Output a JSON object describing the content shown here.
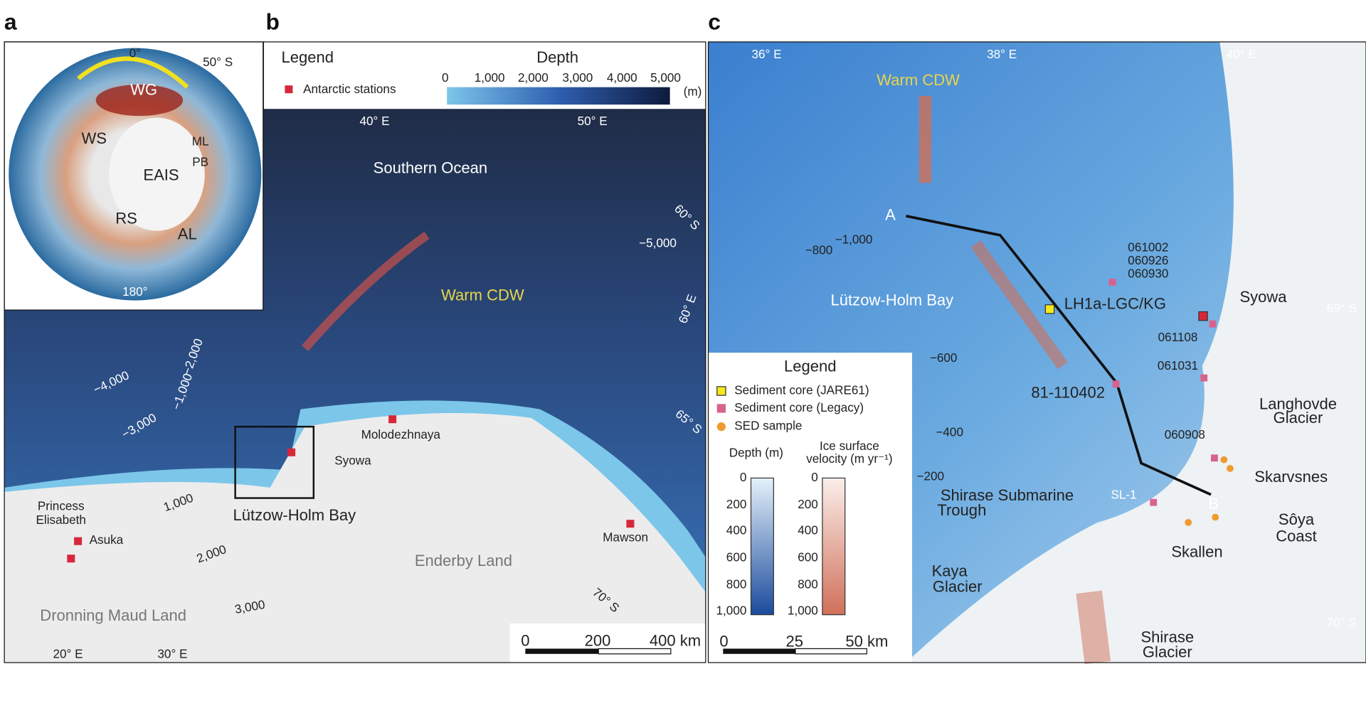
{
  "panel_a": {
    "label": "a",
    "labels": [
      "0°",
      "50° S",
      "WG",
      "WS",
      "ML",
      "PB",
      "EAIS",
      "RS",
      "AL",
      "180°"
    ]
  },
  "panel_b": {
    "label": "b",
    "legend": {
      "title": "Legend",
      "stations": "Antarctic stations",
      "depth_title": "Depth",
      "depth_ticks": [
        "0",
        "1,000",
        "2,000",
        "3,000",
        "4,000",
        "5,000"
      ],
      "depth_unit": "(m)"
    },
    "labels": [
      "40° E",
      "50° E",
      "Southern Ocean",
      "60° S",
      "60° E",
      "65° S",
      "70° S",
      "Warm CDW",
      "−5,000",
      "−4,000",
      "−3,000",
      "−2,000",
      "−1,000",
      "1,000",
      "2,000",
      "3,000",
      "Molodezhnaya",
      "Syowa",
      "Lützow-Holm Bay",
      "Princess",
      "Elisabeth",
      "Asuka",
      "Mawson",
      "Enderby Land",
      "Dronning Maud Land",
      "20° E",
      "30° E"
    ],
    "scale_bar": [
      "0",
      "200",
      "400 km"
    ]
  },
  "panel_c": {
    "label": "c",
    "labels": [
      "36° E",
      "38° E",
      "40° E",
      "Warm CDW",
      "A",
      "B",
      "−1,000",
      "−800",
      "−600",
      "−400",
      "−200",
      "Lützow-Holm Bay",
      "061002",
      "060926",
      "060930",
      "LH1a-LGC/KG",
      "Syowa",
      "69° S",
      "061108",
      "061031",
      "81-110402",
      "Langhovde",
      "Glacier",
      "060908",
      "Skarvsnes",
      "SL-1",
      "Sôya",
      "Coast",
      "Skallen",
      "Shirase Submarine",
      "Trough",
      "Kaya",
      "Glacier",
      "Shirase",
      "Glacier",
      "70° S"
    ],
    "legend": {
      "title": "Legend",
      "entries": [
        "Sediment core (JARE61)",
        "Sediment core (Legacy)",
        "SED sample"
      ],
      "depth_title": "Depth (m)",
      "velocity_title": [
        "Ice surface",
        "velocity (m yr⁻¹)"
      ],
      "depth_ticks": [
        "0",
        "200",
        "400",
        "600",
        "800",
        "1,000"
      ],
      "velocity_ticks": [
        "0",
        "200",
        "400",
        "600",
        "800",
        "1,000"
      ]
    },
    "scale_bar": [
      "0",
      "25",
      "50 km"
    ]
  }
}
